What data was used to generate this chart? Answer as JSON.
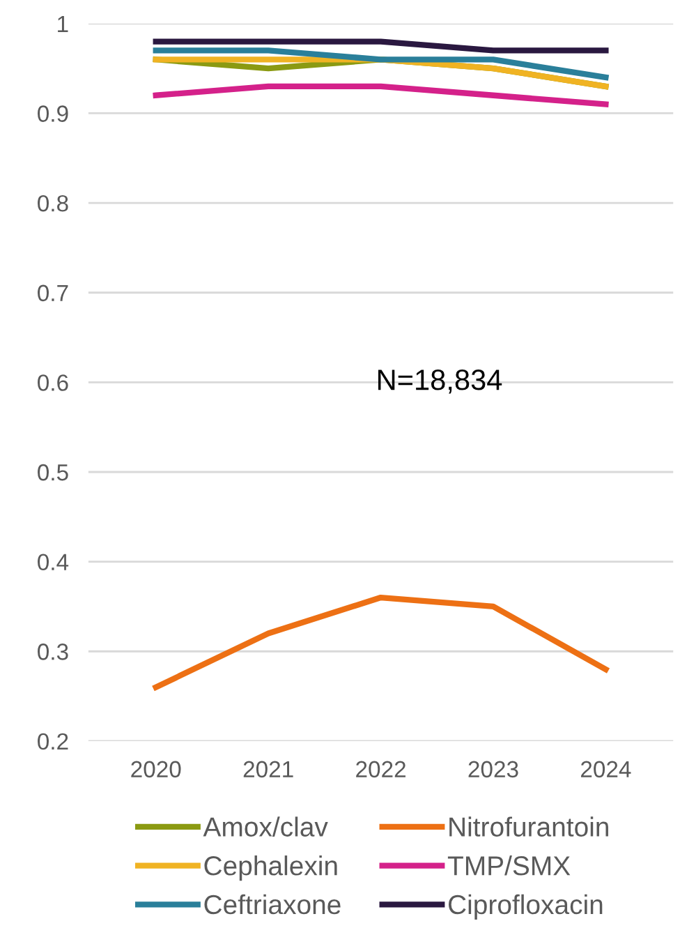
{
  "chart_data": {
    "type": "line",
    "categories": [
      "2020",
      "2021",
      "2022",
      "2023",
      "2024"
    ],
    "series": [
      {
        "name": "Amox/clav",
        "color": "#8b9a12",
        "values": [
          0.96,
          0.95,
          0.96,
          0.95,
          0.93
        ]
      },
      {
        "name": "Cephalexin",
        "color": "#f0b323",
        "values": [
          0.96,
          0.96,
          0.96,
          0.95,
          0.93
        ]
      },
      {
        "name": "Ceftriaxone",
        "color": "#2a7f9a",
        "values": [
          0.97,
          0.97,
          0.96,
          0.96,
          0.94
        ]
      },
      {
        "name": "Nitrofurantoin",
        "color": "#ed7014",
        "values": [
          0.26,
          0.32,
          0.36,
          0.35,
          0.28
        ]
      },
      {
        "name": "TMP/SMX",
        "color": "#d4218a",
        "values": [
          0.92,
          0.93,
          0.93,
          0.92,
          0.91
        ]
      },
      {
        "name": "Ciprofloxacin",
        "color": "#2a1840",
        "values": [
          0.98,
          0.98,
          0.98,
          0.97,
          0.97
        ]
      }
    ],
    "ylim": [
      0.2,
      1
    ],
    "yticks": [
      0.2,
      0.3,
      0.4,
      0.5,
      0.6,
      0.7,
      0.8,
      0.9,
      1
    ],
    "grid": "y",
    "legend": "bottom",
    "marker": "none",
    "line_style": "solid",
    "annotations": [
      "N=18,834"
    ]
  }
}
